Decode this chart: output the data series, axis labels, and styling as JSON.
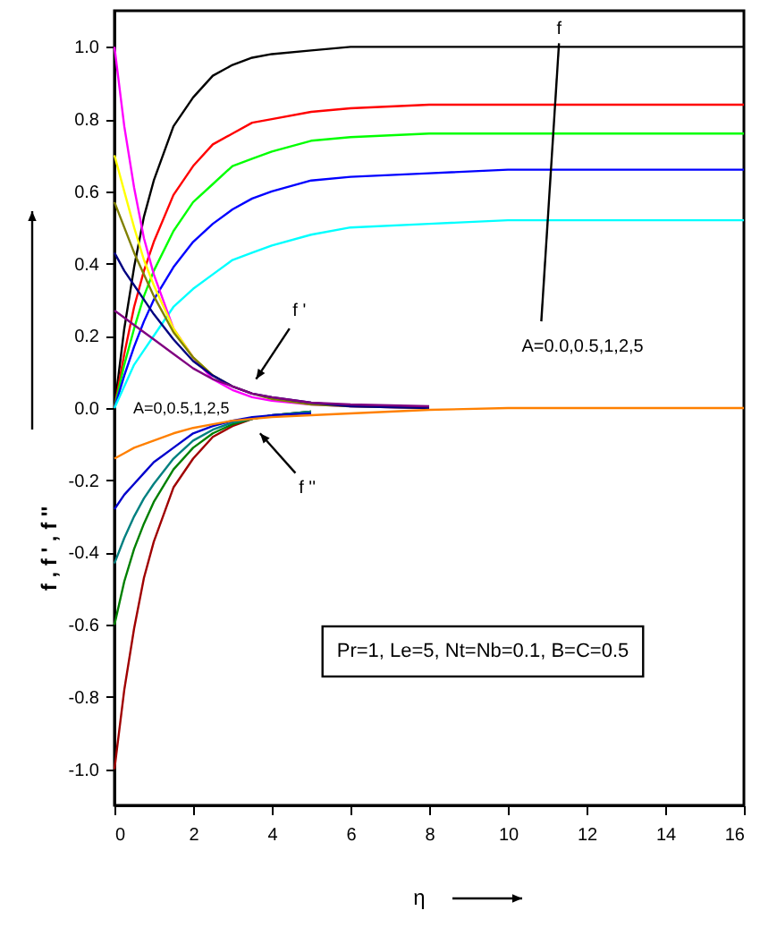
{
  "chart_data": {
    "type": "line",
    "xlabel": "η",
    "ylabel": "f , f ' , f ''",
    "x": [
      0,
      0.25,
      0.5,
      0.75,
      1,
      1.5,
      2,
      2.5,
      3,
      3.5,
      4,
      5,
      6,
      8,
      10,
      12,
      14,
      16
    ],
    "xlim": [
      0,
      16
    ],
    "xticks": [
      0,
      2,
      4,
      6,
      8,
      10,
      12,
      14,
      16
    ],
    "ylim": [
      -1.1,
      1.1
    ],
    "yticks": [
      {
        "value": -1,
        "label": "-1.0"
      },
      -0.8,
      -0.6,
      -0.4,
      -0.2,
      {
        "value": 0,
        "label": "0.0"
      },
      0.2,
      0.4,
      0.6,
      0.8,
      {
        "value": 1,
        "label": "1.0"
      }
    ],
    "grid": false,
    "line_style": "solid",
    "series": [
      {
        "color": "#000000",
        "values": [
          0,
          0.22,
          0.39,
          0.53,
          0.63,
          0.78,
          0.86,
          0.92,
          0.95,
          0.97,
          0.98,
          0.99,
          1.0,
          1.0,
          1.0,
          1.0,
          1.0,
          1.0
        ]
      },
      {
        "color": "#ff0000",
        "values": [
          0,
          0.15,
          0.28,
          0.38,
          0.46,
          0.59,
          0.67,
          0.73,
          0.76,
          0.79,
          0.8,
          0.82,
          0.83,
          0.84,
          0.84,
          0.84,
          0.84,
          0.84
        ]
      },
      {
        "color": "#00ff00",
        "values": [
          0,
          0.12,
          0.22,
          0.31,
          0.38,
          0.49,
          0.57,
          0.62,
          0.67,
          0.69,
          0.71,
          0.74,
          0.75,
          0.76,
          0.76,
          0.76,
          0.76,
          0.76
        ]
      },
      {
        "color": "#0000ff",
        "values": [
          0,
          0.09,
          0.17,
          0.24,
          0.3,
          0.39,
          0.46,
          0.51,
          0.55,
          0.58,
          0.6,
          0.63,
          0.64,
          0.65,
          0.66,
          0.66,
          0.66,
          0.66
        ]
      },
      {
        "color": "#00ffff",
        "values": [
          0,
          0.06,
          0.12,
          0.16,
          0.2,
          0.28,
          0.33,
          0.37,
          0.41,
          0.43,
          0.45,
          0.48,
          0.5,
          0.51,
          0.52,
          0.52,
          0.52,
          0.52
        ]
      },
      {
        "color": "#ff00ff",
        "values": [
          1.0,
          0.78,
          0.61,
          0.47,
          0.37,
          0.22,
          0.14,
          0.08,
          0.05,
          0.03,
          0.02,
          0.01,
          0.005,
          0,
          null,
          null,
          null,
          null
        ]
      },
      {
        "color": "#ffff00",
        "values": [
          0.7,
          0.6,
          0.5,
          0.41,
          0.34,
          0.22,
          0.14,
          0.09,
          null,
          null,
          null,
          null,
          null,
          null,
          null,
          null,
          null,
          null
        ]
      },
      {
        "color": "#808000",
        "values": [
          0.57,
          0.5,
          0.43,
          0.37,
          0.31,
          0.21,
          0.14,
          0.09,
          0.06,
          0.04,
          0.025,
          0.01,
          0.005,
          0,
          null,
          null,
          null,
          null
        ]
      },
      {
        "color": "#000080",
        "values": [
          0.43,
          0.38,
          0.34,
          0.3,
          0.26,
          0.19,
          0.13,
          0.09,
          0.06,
          0.04,
          0.03,
          0.015,
          0.005,
          0,
          null,
          null,
          null,
          null
        ]
      },
      {
        "color": "#800080",
        "values": [
          0.27,
          0.25,
          0.23,
          0.21,
          0.19,
          0.15,
          0.11,
          0.08,
          0.06,
          0.04,
          0.03,
          0.015,
          0.01,
          0.005,
          null,
          null,
          null,
          null
        ]
      },
      {
        "color": "#a00000",
        "values": [
          -1.0,
          -0.78,
          -0.61,
          -0.47,
          -0.37,
          -0.22,
          -0.14,
          -0.08,
          -0.05,
          -0.03,
          -0.02,
          -0.01,
          null,
          null,
          null,
          null,
          null,
          null
        ]
      },
      {
        "color": "#008000",
        "values": [
          -0.6,
          -0.48,
          -0.39,
          -0.32,
          -0.26,
          -0.17,
          -0.11,
          -0.07,
          -0.045,
          -0.03,
          -0.02,
          -0.01,
          null,
          null,
          null,
          null,
          null,
          null
        ]
      },
      {
        "color": "#008080",
        "values": [
          -0.43,
          -0.36,
          -0.3,
          -0.25,
          -0.21,
          -0.14,
          -0.09,
          -0.06,
          -0.04,
          -0.03,
          -0.02,
          -0.01,
          null,
          null,
          null,
          null,
          null,
          null
        ]
      },
      {
        "color": "#0000cc",
        "values": [
          -0.28,
          -0.24,
          -0.21,
          -0.18,
          -0.15,
          -0.11,
          -0.07,
          -0.05,
          -0.035,
          -0.025,
          -0.02,
          -0.015,
          null,
          null,
          null,
          null,
          null,
          null
        ]
      },
      {
        "color": "#ff8000",
        "values": [
          -0.14,
          -0.125,
          -0.11,
          -0.1,
          -0.09,
          -0.07,
          -0.055,
          -0.045,
          -0.035,
          -0.03,
          -0.025,
          -0.02,
          -0.015,
          -0.005,
          0,
          0,
          0,
          0
        ]
      }
    ],
    "annotations": [
      "f",
      "A=0.0,0.5,1,2,5",
      "f '",
      "A=0,0.5,1,2,5",
      "f ''",
      "Pr=1, Le=5, Nt=Nb=0.1, B=C=0.5"
    ]
  }
}
